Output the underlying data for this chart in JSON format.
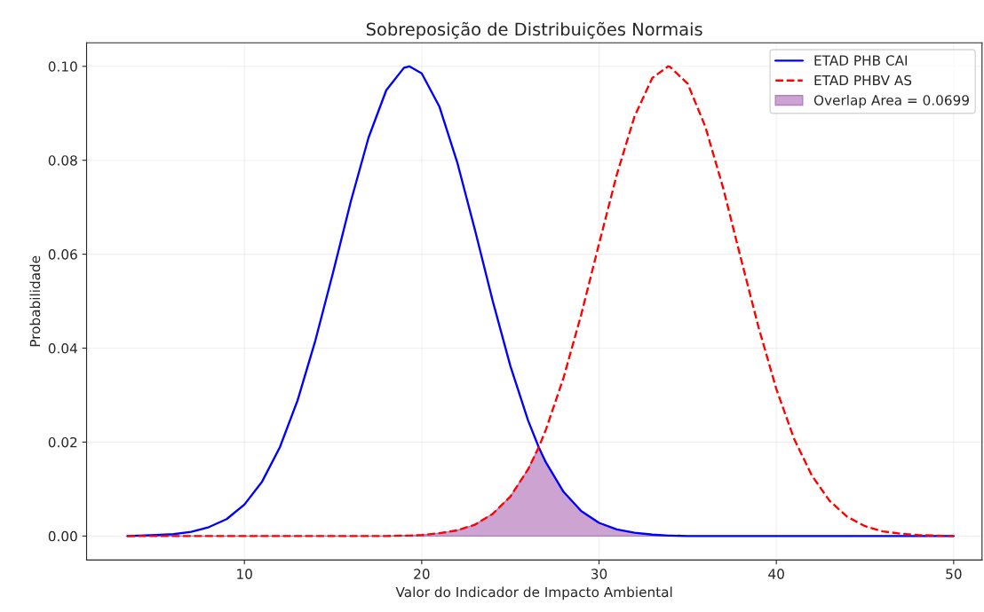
{
  "chart_data": {
    "type": "line",
    "title": "Sobreposição de Distribuições Normais",
    "xlabel": "Valor do Indicador de Impacto Ambiental",
    "ylabel": "Probabilidade",
    "x": [
      3.4,
      5,
      6,
      7,
      8,
      9,
      10,
      11,
      12,
      13,
      14,
      15,
      16,
      17,
      18,
      19,
      19.3,
      20,
      21,
      22,
      23,
      24,
      25,
      26,
      26.6,
      27,
      28,
      29,
      30,
      31,
      32,
      33,
      33.9,
      34,
      35,
      36,
      37,
      38,
      39,
      40,
      41,
      42,
      43,
      44,
      45,
      46,
      47,
      48,
      49,
      50
    ],
    "series": [
      {
        "name": "ETAD PHB CAI",
        "color": "#0000ff",
        "line_style": "solid",
        "values": [
          0,
          0.0002,
          0.0004,
          0.0009,
          0.0019,
          0.0036,
          0.0067,
          0.0116,
          0.0189,
          0.0289,
          0.0416,
          0.0561,
          0.0712,
          0.0848,
          0.0949,
          0.0997,
          0.1,
          0.0985,
          0.0914,
          0.0796,
          0.0652,
          0.0501,
          0.0362,
          0.0246,
          0.0189,
          0.0157,
          0.0094,
          0.0053,
          0.0028,
          0.0014,
          0.0007,
          0.0003,
          0.0001,
          0.0001,
          0,
          0,
          0,
          0,
          0,
          0,
          0,
          0,
          0,
          0,
          0,
          0,
          0,
          0,
          0,
          0
        ]
      },
      {
        "name": "ETAD PHBV AS",
        "color": "#ff0000",
        "line_style": "dashed",
        "values": [
          0,
          0,
          0,
          0,
          0,
          0,
          0,
          0,
          0,
          0,
          0,
          0,
          0,
          0,
          0,
          0.0001,
          0.0001,
          0.0002,
          0.0006,
          0.0012,
          0.0024,
          0.0047,
          0.0084,
          0.0142,
          0.0189,
          0.0226,
          0.0337,
          0.0472,
          0.0622,
          0.0769,
          0.0893,
          0.0975,
          0.1,
          0.0999,
          0.0963,
          0.0871,
          0.0741,
          0.0591,
          0.0444,
          0.0313,
          0.0207,
          0.0129,
          0.0075,
          0.0041,
          0.0021,
          0.001,
          0.0005,
          0.0002,
          0.0001,
          0
        ]
      },
      {
        "name": "Overlap Area = 0.0699",
        "color": "#cca3d1",
        "type": "area",
        "values": [
          0,
          0,
          0,
          0,
          0,
          0,
          0,
          0,
          0,
          0,
          0,
          0,
          0,
          0,
          0,
          0.0001,
          0.0001,
          0.0002,
          0.0006,
          0.0012,
          0.0024,
          0.0047,
          0.0084,
          0.0142,
          0.0189,
          0.0157,
          0.0094,
          0.0053,
          0.0028,
          0.0014,
          0.0007,
          0.0003,
          0.0001,
          0.0001,
          0,
          0,
          0,
          0,
          0,
          0,
          0,
          0,
          0,
          0,
          0,
          0,
          0,
          0,
          0,
          0
        ]
      }
    ],
    "xlim": [
      1.1,
      51.6
    ],
    "ylim": [
      -0.0051,
      0.105
    ],
    "xticks": [
      10,
      20,
      30,
      40,
      50
    ],
    "yticks": [
      {
        "value": 0,
        "label": "0.00"
      },
      {
        "value": 0.02,
        "label": "0.02"
      },
      {
        "value": 0.04,
        "label": "0.04"
      },
      {
        "value": 0.06,
        "label": "0.06"
      },
      {
        "value": 0.08,
        "label": "0.08"
      },
      {
        "value": 0.1,
        "label": "0.10"
      }
    ],
    "grid": true,
    "legend": "top right"
  }
}
